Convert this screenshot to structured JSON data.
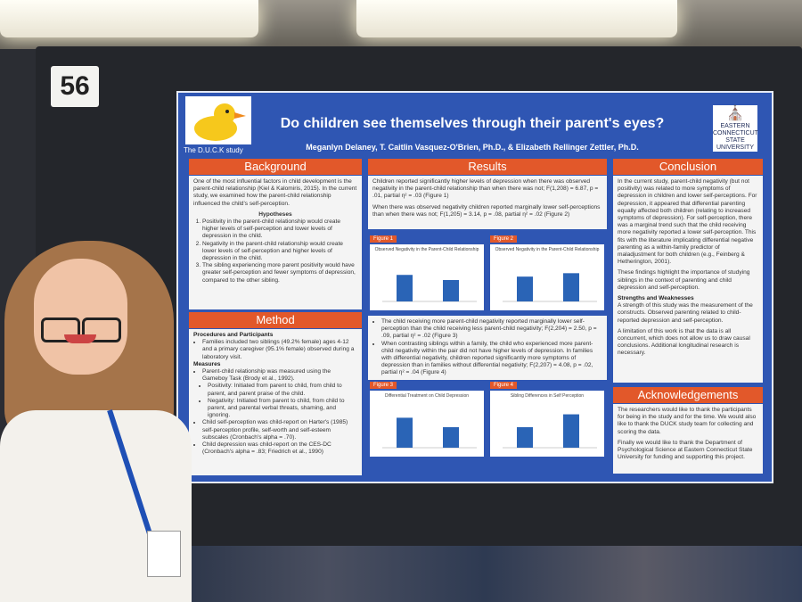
{
  "booth_number": "56",
  "poster": {
    "title": "Do children see themselves through their parent's eyes?",
    "authors": "Meganlyn Delaney, T. Caitlin Vasquez-O'Brien, Ph.D., & Elizabeth Rellinger Zettler, Ph.D.",
    "study_label": "The D.U.C.K study",
    "logo_text": "EASTERN CONNECTICUT STATE UNIVERSITY",
    "background": {
      "heading": "Background",
      "intro": "One of the most influential factors in child development is the parent-child relationship (Kiel & Kalomiris, 2015). In the current study, we examined how the parent-child relationship influenced the child's self-perception.",
      "hypotheses_heading": "Hypotheses",
      "hypotheses": [
        "Positivity in the parent-child relationship would create higher levels of self-perception and lower levels of depression in the child.",
        "Negativity in the parent-child relationship would create lower levels of self-perception and higher levels of depression in the child.",
        "The sibling experiencing more parent positivity would have greater self-perception and fewer symptoms of depression, compared to the other sibling."
      ]
    },
    "method": {
      "heading": "Method",
      "procedures_heading": "Procedures and Participants",
      "procedures": [
        "Families included two siblings (49.2% female) ages 4-12 and a primary caregiver (95.1% female) observed during a laboratory visit."
      ],
      "measures_heading": "Measures",
      "measures": [
        "Parent-child relationship was measured using the Gameboy Task (Brody et al., 1992).",
        "Positivity: Initiated from parent to child, from child to parent, and parent praise of the child.",
        "Negativity: Initiated from parent to child, from child to parent, and parental verbal threats, shaming, and ignoring.",
        "Child self-perception was child-report on Harter's (1985) self-perception profile, self-worth and self-esteem subscales (Cronbach's alpha = .70).",
        "Child depression was child-report on the CES-DC (Cronbach's alpha = .83; Friedrich et al., 1990)"
      ]
    },
    "results": {
      "heading": "Results",
      "para1": "Children reported significantly higher levels of depression when there was observed negativity in the parent-child relationship than when there was not; F(1,208) = 6.87, p = .01, partial η² = .03 (Figure 1)",
      "para2": "When there was observed negativity children reported marginally lower self-perceptions than when there was not; F(1,205) = 3.14, p = .08, partial η² = .02 (Figure 2)",
      "bullets": [
        "The child receiving more parent-child negativity reported marginally lower self-perception than the child receiving less parent-child negativity; F(2,204) = 2.50, p = .09, partial η² = .02 (Figure 3)",
        "When contrasting siblings within a family, the child who experienced more parent-child negativity within the pair did not have higher levels of depression. In families with differential negativity, children reported significantly more symptoms of depression than in families without differential negativity; F(2,207) = 4.08, p = .02, partial η² = .04 (Figure 4)"
      ],
      "figures": [
        {
          "tag": "Figure 1",
          "title": "Observed Negativity in the Parent-Child Relationship",
          "values": [
            0.62,
            0.5
          ]
        },
        {
          "tag": "Figure 2",
          "title": "Observed Negativity in the Parent-Child Relationship",
          "values": [
            0.58,
            0.66
          ]
        },
        {
          "tag": "Figure 3",
          "title": "Differential Treatment on Child Depression",
          "values": [
            0.7,
            0.48
          ]
        },
        {
          "tag": "Figure 4",
          "title": "Sibling Differences in Self Perception",
          "values": [
            0.48,
            0.78
          ]
        }
      ]
    },
    "conclusion": {
      "heading": "Conclusion",
      "para1": "In the current study, parent-child negativity (but not positivity) was related to more symptoms of depression in children and lower self-perceptions. For depression, it appeared that differential parenting equally affected both children (relating to increased symptoms of depression). For self-perception, there was a marginal trend such that the child receiving more negativity reported a lower self-perception. This fits with the literature implicating differential negative parenting as a within-family predictor of maladjustment for both children (e.g., Feinberg & Hetherington, 2001).",
      "para2": "These findings highlight the importance of studying siblings in the context of parenting and child depression and self-perception.",
      "strengths_heading": "Strengths and Weaknesses",
      "strengths": "A strength of this study was the measurement of the constructs. Observed parenting related to child-reported depression and self-perception.",
      "weakness": "A limitation of this work is that the data is all concurrent, which does not allow us to draw causal conclusions. Additional longitudinal research is necessary."
    },
    "acknowledgements": {
      "heading": "Acknowledgements",
      "para1": "The researchers would like to thank the participants for being in the study and for the time. We would also like to thank the DUCK study team for collecting and scoring the data.",
      "para2": "Finally we would like to thank the Department of Psychological Science at Eastern Connecticut State University for funding and supporting this project."
    }
  },
  "colors": {
    "poster_blue": "#2f56b3",
    "section_orange": "#e2582a",
    "bar_blue": "#2a64b6"
  }
}
